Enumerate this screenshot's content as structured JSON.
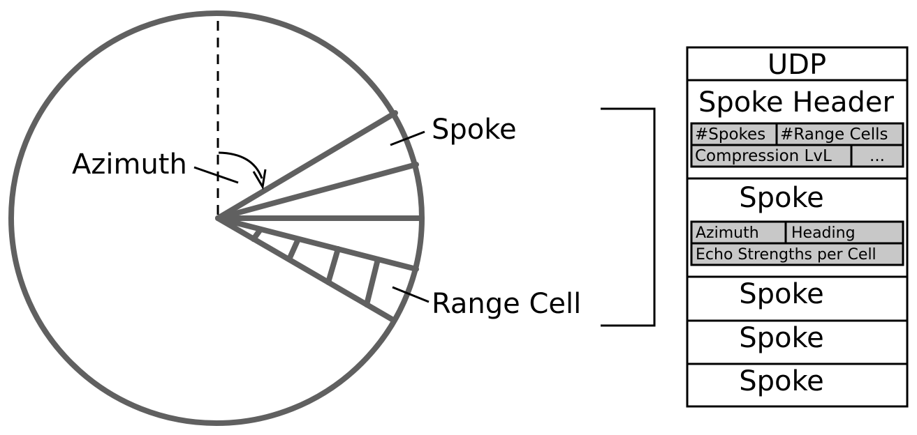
{
  "colors": {
    "circle_stroke": "#606060",
    "line": "#000000",
    "cell_fill": "#c8c8c8",
    "background": "#ffffff"
  },
  "radar": {
    "spoke_label": "Spoke",
    "azimuth_label": "Azimuth",
    "range_cell_label": "Range Cell"
  },
  "packet": {
    "udp_label": "UDP",
    "spoke_header": {
      "title": "Spoke Header",
      "fields": [
        "#Spokes",
        "#Range Cells",
        "Compression LvL",
        "..."
      ]
    },
    "spoke_detail": {
      "title": "Spoke",
      "fields": [
        "Azimuth",
        "Heading",
        "Echo Strengths per Cell"
      ]
    },
    "spokes": [
      "Spoke",
      "Spoke",
      "Spoke"
    ]
  }
}
